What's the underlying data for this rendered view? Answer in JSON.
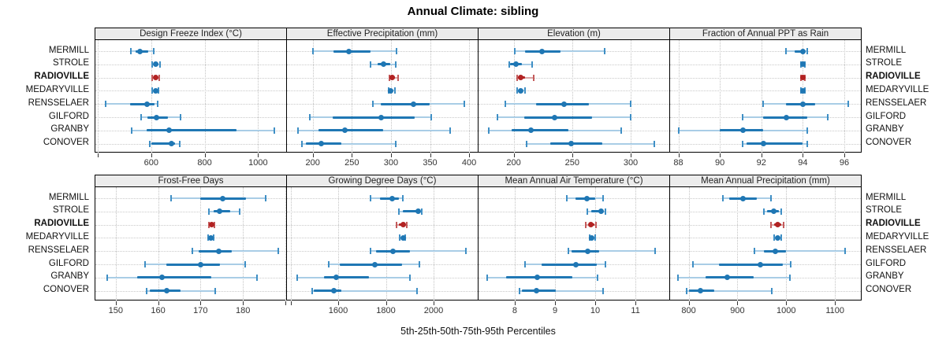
{
  "title": "Annual Climate: sibling",
  "caption": "5th-25th-50th-75th-95th Percentiles",
  "colors": {
    "site_normal": "#1f77b4",
    "site_normal_light": "#a9cde6",
    "site_normal_cap": "#3f8fc5",
    "site_highlight": "#b22222",
    "site_highlight_light": "#d9a5a5",
    "site_highlight_cap": "#c45b5b",
    "strip_bg": "#ececec",
    "panel_border": "#000000",
    "grid": "#c8c8c8"
  },
  "chart_data": {
    "type": "dotplot",
    "percentiles": [
      "5th",
      "25th",
      "50th",
      "75th",
      "95th"
    ],
    "sites": [
      "MERMILL",
      "STROLE",
      "RADIOVILLE",
      "MEDARYVILLE",
      "RENSSELAER",
      "GILFORD",
      "GRANBY",
      "CONOVER"
    ],
    "highlight_site": "RADIOVILLE",
    "legend_note": "median dot, 25th-75th thick bar, 5th-95th whisker with caps",
    "panels": [
      {
        "title": "Design Freeze Index (°C)",
        "grid_row": 1,
        "xlim": [
          391,
          1105
        ],
        "ticks": [
          600,
          800,
          1000
        ],
        "minor_ticks": [
          400
        ],
        "values": {
          "MERMILL": [
            525,
            540,
            557,
            590,
            608
          ],
          "STROLE": [
            602,
            610,
            618,
            626,
            632
          ],
          "RADIOVILLE": [
            604,
            610,
            617,
            624,
            630
          ],
          "MEDARYVILLE": [
            602,
            609,
            616,
            622,
            628
          ],
          "RENSSELAER": [
            430,
            520,
            585,
            612,
            625
          ],
          "GILFORD": [
            563,
            585,
            620,
            663,
            710
          ],
          "GRANBY": [
            528,
            582,
            668,
            918,
            1062
          ],
          "CONOVER": [
            594,
            600,
            675,
            690,
            706
          ]
        }
      },
      {
        "title": "Effective Precipitation (mm)",
        "grid_row": 1,
        "xlim": [
          167,
          411
        ],
        "ticks": [
          200,
          250,
          300,
          350,
          400
        ],
        "minor_ticks": [],
        "values": {
          "MERMILL": [
            200,
            226,
            246,
            274,
            307
          ],
          "STROLE": [
            274,
            283,
            291,
            299,
            306
          ],
          "RADIOVILLE": [
            298,
            300,
            302,
            305,
            309
          ],
          "MEDARYVILLE": [
            297,
            298,
            300,
            302,
            305
          ],
          "RENSSELAER": [
            277,
            287,
            329,
            350,
            394
          ],
          "GILFORD": [
            196,
            225,
            287,
            330,
            352
          ],
          "GRANBY": [
            181,
            207,
            241,
            290,
            376
          ],
          "CONOVER": [
            186,
            191,
            211,
            237,
            306
          ]
        }
      },
      {
        "title": "Elevation (m)",
        "grid_row": 1,
        "xlim": [
          170,
          333
        ],
        "ticks": [
          200,
          250,
          300
        ],
        "minor_ticks": [],
        "values": {
          "MERMILL": [
            201,
            210,
            224,
            240,
            278
          ],
          "STROLE": [
            196,
            197,
            202,
            207,
            216
          ],
          "RADIOVILLE": [
            203,
            204,
            206,
            210,
            217
          ],
          "MEDARYVILLE": [
            203,
            204,
            206,
            208,
            210
          ],
          "RENSSELAER": [
            193,
            219,
            243,
            264,
            300
          ],
          "GILFORD": [
            186,
            209,
            235,
            267,
            300
          ],
          "GRANBY": [
            179,
            198,
            215,
            247,
            292
          ],
          "CONOVER": [
            211,
            231,
            249,
            276,
            320
          ]
        }
      },
      {
        "title": "Fraction of Annual PPT as Rain",
        "grid_row": 1,
        "xlim": [
          87.6,
          96.8
        ],
        "ticks": [
          88,
          90,
          92,
          94,
          96
        ],
        "minor_ticks": [],
        "values": {
          "MERMILL": [
            93.2,
            93.6,
            94.0,
            94.1,
            94.2
          ],
          "STROLE": [
            93.9,
            94.0,
            94.0,
            94.1,
            94.1
          ],
          "RADIOVILLE": [
            93.9,
            94.0,
            94.0,
            94.0,
            94.1
          ],
          "MEDARYVILLE": [
            93.9,
            94.0,
            94.0,
            94.1,
            94.1
          ],
          "RENSSELAER": [
            92.1,
            93.2,
            94.0,
            94.6,
            96.2
          ],
          "GILFORD": [
            91.1,
            92.1,
            93.2,
            94.2,
            95.2
          ],
          "GRANBY": [
            88.0,
            90.0,
            91.1,
            92.1,
            94.2
          ],
          "CONOVER": [
            91.1,
            91.3,
            92.1,
            94.0,
            94.2
          ]
        }
      },
      {
        "title": "Frost-Free Days",
        "grid_row": 2,
        "xlim": [
          145.2,
          190.2
        ],
        "ticks": [
          150,
          160,
          170,
          180
        ],
        "minor_ticks": [
          190
        ],
        "values": {
          "MERMILL": [
            163.0,
            170.0,
            175.2,
            180.8,
            185.4
          ],
          "STROLE": [
            172.0,
            173.0,
            174.5,
            177.0,
            179.2
          ],
          "RADIOVILLE": [
            171.9,
            172.2,
            172.6,
            173.0,
            173.3
          ],
          "MEDARYVILLE": [
            171.8,
            172.1,
            172.4,
            172.8,
            173.1
          ],
          "RENSSELAER": [
            168.0,
            169.5,
            174.3,
            177.3,
            188.3
          ],
          "GILFORD": [
            157.0,
            162.0,
            170.0,
            174.5,
            180.5
          ],
          "GRANBY": [
            148.0,
            155.0,
            161.0,
            172.5,
            183.3
          ],
          "CONOVER": [
            157.3,
            158.0,
            162.0,
            165.3,
            173.4
          ]
        }
      },
      {
        "title": "Growing Degree Days (°C)",
        "grid_row": 2,
        "xlim": [
          1385,
          2185
        ],
        "ticks": [
          1600,
          1800,
          2000
        ],
        "minor_ticks": [
          1400
        ],
        "values": {
          "MERMILL": [
            1734,
            1775,
            1826,
            1854,
            1871
          ],
          "STROLE": [
            1854,
            1872,
            1934,
            1945,
            1950
          ],
          "RADIOVILLE": [
            1843,
            1856,
            1871,
            1882,
            1888
          ],
          "MEDARYVILLE": [
            1859,
            1864,
            1871,
            1876,
            1880
          ],
          "RENSSELAER": [
            1734,
            1758,
            1831,
            1901,
            2134
          ],
          "GILFORD": [
            1560,
            1608,
            1753,
            1868,
            1940
          ],
          "GRANBY": [
            1427,
            1540,
            1592,
            1729,
            1901
          ],
          "CONOVER": [
            1490,
            1497,
            1582,
            1613,
            1929
          ]
        }
      },
      {
        "title": "Mean Annual Air Temperature (°C)",
        "grid_row": 2,
        "xlim": [
          7.1,
          11.84
        ],
        "ticks": [
          8,
          9,
          10,
          11
        ],
        "minor_ticks": [],
        "values": {
          "MERMILL": [
            9.3,
            9.5,
            9.8,
            10.0,
            10.2
          ],
          "STROLE": [
            9.8,
            9.9,
            10.15,
            10.2,
            10.25
          ],
          "RADIOVILLE": [
            9.77,
            9.84,
            9.9,
            9.97,
            10.01
          ],
          "MEDARYVILLE": [
            9.87,
            9.9,
            9.92,
            9.95,
            9.99
          ],
          "RENSSELAER": [
            9.33,
            9.42,
            9.82,
            10.1,
            11.48
          ],
          "GILFORD": [
            8.25,
            8.66,
            9.51,
            10.03,
            10.26
          ],
          "GRANBY": [
            7.32,
            7.78,
            8.55,
            9.44,
            10.05
          ],
          "CONOVER": [
            8.12,
            8.17,
            8.53,
            9.02,
            10.2
          ]
        }
      },
      {
        "title": "Mean Annual Precipitation (mm)",
        "grid_row": 2,
        "xlim": [
          762,
          1153
        ],
        "ticks": [
          800,
          900,
          1000,
          1100
        ],
        "minor_ticks": [],
        "values": {
          "MERMILL": [
            870,
            883,
            911,
            939,
            969
          ],
          "STROLE": [
            954,
            960,
            975,
            985,
            990
          ],
          "RADIOVILLE": [
            969,
            975,
            983,
            990,
            994
          ],
          "MEDARYVILLE": [
            975,
            979,
            982,
            986,
            990
          ],
          "RENSSELAER": [
            935,
            955,
            978,
            1000,
            1120
          ],
          "GILFORD": [
            809,
            862,
            947,
            993,
            1010
          ],
          "GRANBY": [
            778,
            835,
            879,
            934,
            1008
          ],
          "CONOVER": [
            796,
            800,
            825,
            853,
            971
          ]
        }
      }
    ]
  }
}
